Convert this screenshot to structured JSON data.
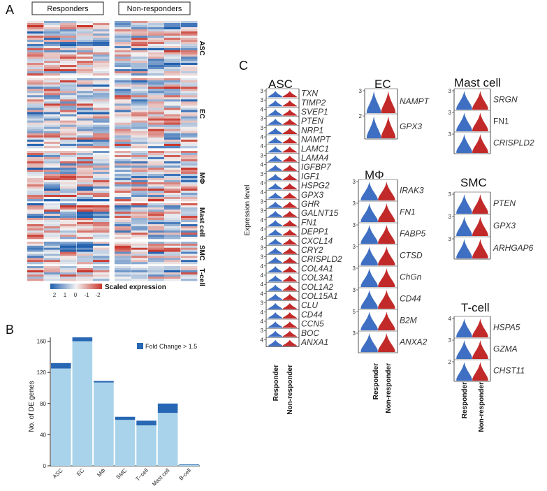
{
  "panel_labels": {
    "a": "A",
    "b": "B",
    "c": "C"
  },
  "heatmap": {
    "groups": [
      "Responders",
      "Non-responders"
    ],
    "cell_types": [
      "ASC",
      "EC",
      "MΦ",
      "Mast cell",
      "SMC",
      "T-cell"
    ],
    "colorbar_ticks": [
      "2",
      "1",
      "0",
      "-1",
      "-2"
    ],
    "colorbar_label": "Scaled expression",
    "colors": {
      "high": "#1f5fae",
      "mid": "#f2f2f2",
      "low": "#c9362b"
    }
  },
  "chart_data": {
    "type": "bar",
    "categories": [
      "ASC",
      "EC",
      "MΦ",
      "SMC",
      "T−cell",
      "Mast cell",
      "B-cell"
    ],
    "series": [
      {
        "name": "",
        "values": [
          125,
          160,
          107,
          59,
          52,
          68,
          1
        ],
        "color": "#a9d3ea"
      },
      {
        "name": "Fold Change > 1.5",
        "values": [
          7,
          5,
          2,
          4,
          6,
          12,
          1
        ],
        "color": "#2767b3"
      }
    ],
    "ylabel": "No. of DE genes",
    "xlabel": "",
    "ylim": [
      0,
      165
    ],
    "yticks": [
      0,
      40,
      80,
      120,
      160
    ],
    "stacked": true,
    "legend_position": "top-right"
  },
  "violin": {
    "y_axis_label": "Expression level",
    "x_labels": [
      "Responder",
      "Non-responder"
    ],
    "colors": {
      "responder": "#3f6fc2",
      "non_responder": "#c22a2a"
    },
    "panels": [
      {
        "title": "ASC",
        "genes": [
          {
            "name": "TXN",
            "tick": "3"
          },
          {
            "name": "TIMP2",
            "tick": "3"
          },
          {
            "name": "SVEP1",
            "tick": "4"
          },
          {
            "name": "PTEN",
            "tick": "3"
          },
          {
            "name": "NRP1",
            "tick": "3"
          },
          {
            "name": "NAMPT",
            "tick": "4"
          },
          {
            "name": "LAMC1",
            "tick": "4"
          },
          {
            "name": "LAMA4",
            "tick": "3"
          },
          {
            "name": "IGFBP7",
            "tick": "4"
          },
          {
            "name": "IGF1",
            "tick": "3"
          },
          {
            "name": "HSPG2",
            "tick": "4"
          },
          {
            "name": "GPX3",
            "tick": "4"
          },
          {
            "name": "GHR",
            "tick": "3"
          },
          {
            "name": "GALNT15",
            "tick": "3"
          },
          {
            "name": "FN1",
            "tick": "4"
          },
          {
            "name": "DEPP1",
            "tick": "4"
          },
          {
            "name": "CXCL14",
            "tick": "4"
          },
          {
            "name": "CRY2",
            "tick": "3"
          },
          {
            "name": "CRISPLD2",
            "tick": "3"
          },
          {
            "name": "COL4A1",
            "tick": "4"
          },
          {
            "name": "COL3A1",
            "tick": "4"
          },
          {
            "name": "COL1A2",
            "tick": "4"
          },
          {
            "name": "COL15A1",
            "tick": "4"
          },
          {
            "name": "CLU",
            "tick": "3"
          },
          {
            "name": "CD44",
            "tick": "4"
          },
          {
            "name": "CCN5",
            "tick": "4"
          },
          {
            "name": "BOC",
            "tick": "3"
          },
          {
            "name": "ANXA1",
            "tick": "4"
          }
        ]
      },
      {
        "title": "EC",
        "genes": [
          {
            "name": "NAMPT",
            "tick": "3"
          },
          {
            "name": "GPX3",
            "tick": "2"
          }
        ]
      },
      {
        "title": "MΦ",
        "genes": [
          {
            "name": "IRAK3",
            "tick": "3"
          },
          {
            "name": "FN1",
            "tick": "3"
          },
          {
            "name": "FABP5",
            "tick": "3"
          },
          {
            "name": "CTSD",
            "tick": "3"
          },
          {
            "name": "ChGn",
            "tick": "3"
          },
          {
            "name": "CD44",
            "tick": "3"
          },
          {
            "name": "B2M",
            "tick": "5"
          },
          {
            "name": "ANXA2",
            "tick": "3"
          }
        ]
      },
      {
        "title": "Mast cell",
        "genes": [
          {
            "name": "SRGN",
            "tick": "3"
          },
          {
            "name": "FN1",
            "tick": "3"
          },
          {
            "name": "CRISPLD2",
            "tick": "3"
          }
        ]
      },
      {
        "title": "SMC",
        "genes": [
          {
            "name": "PTEN",
            "tick": "3"
          },
          {
            "name": "GPX3",
            "tick": "3"
          },
          {
            "name": "ARHGAP6",
            "tick": "3"
          }
        ]
      },
      {
        "title": "T-cell",
        "genes": [
          {
            "name": "HSPA5",
            "tick": "4"
          },
          {
            "name": "GZMA",
            "tick": "3"
          },
          {
            "name": "CHST11",
            "tick": "2"
          }
        ]
      }
    ]
  }
}
